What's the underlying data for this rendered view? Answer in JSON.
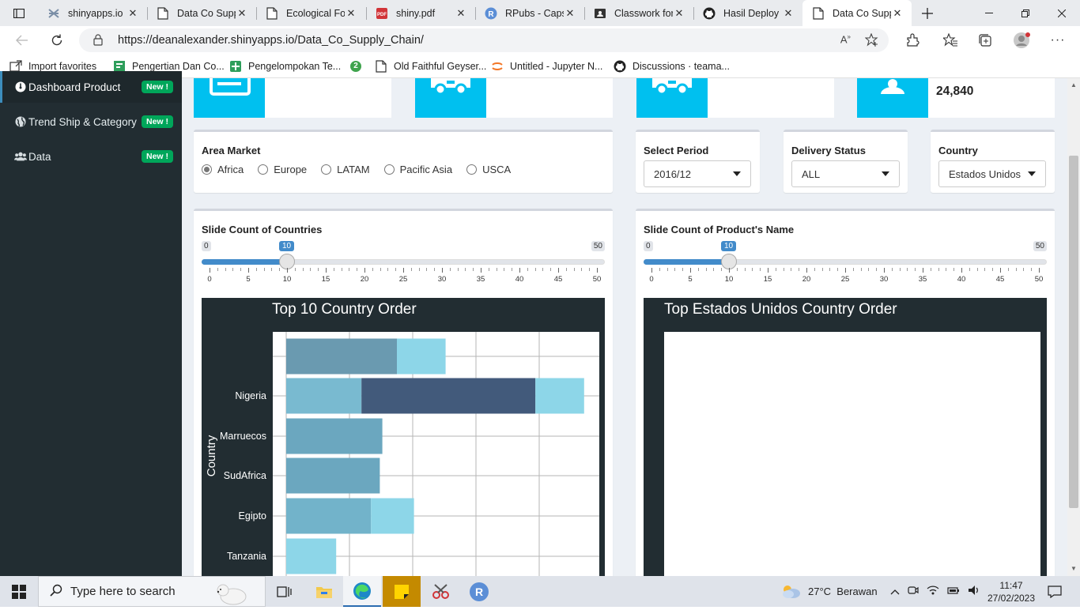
{
  "browser": {
    "tabs": [
      {
        "label": "shinyapps.io",
        "icon": "shinyapps-icon"
      },
      {
        "label": "Data Co Supp",
        "icon": "page-icon"
      },
      {
        "label": "Ecological Fo",
        "icon": "page-icon"
      },
      {
        "label": "shiny.pdf",
        "icon": "pdf-icon"
      },
      {
        "label": "RPubs - Caps",
        "icon": "rpubs-icon"
      },
      {
        "label": "Classwork for",
        "icon": "classroom-icon"
      },
      {
        "label": "Hasil Deploy",
        "icon": "github-icon"
      },
      {
        "label": "Data Co Supp",
        "icon": "page-icon"
      }
    ],
    "url": "https://deanalexander.shinyapps.io/Data_Co_Supply_Chain/",
    "bookmarks": [
      {
        "label": "Import favorites"
      },
      {
        "label": "Pengertian Dan Co..."
      },
      {
        "label": "Pengelompokan Te..."
      },
      {
        "label": "2"
      },
      {
        "label": "Old Faithful Geyser..."
      },
      {
        "label": "Untitled - Jupyter N..."
      },
      {
        "label": "Discussions · teama..."
      }
    ]
  },
  "sidebar": {
    "items": [
      {
        "label": "Dashboard Product",
        "badge": "New !",
        "icon": "dashboard-icon"
      },
      {
        "label": "Trend Ship & Category",
        "badge": "New !",
        "icon": "globe-icon"
      },
      {
        "label": "Data",
        "badge": "New !",
        "icon": "users-icon"
      }
    ]
  },
  "infoboxes": [
    {
      "value": "",
      "icon": "credit-card-icon"
    },
    {
      "value": "",
      "icon": "truck-icon"
    },
    {
      "value": "",
      "icon": "truck-icon"
    },
    {
      "value": "24,840",
      "icon": "user-icon"
    }
  ],
  "filters": {
    "area_market": {
      "label": "Area Market",
      "options": [
        "Africa",
        "Europe",
        "LATAM",
        "Pacific Asia",
        "USCA"
      ],
      "selected": "Africa"
    },
    "period": {
      "label": "Select Period",
      "value": "2016/12"
    },
    "delivery": {
      "label": "Delivery Status",
      "value": "ALL"
    },
    "country": {
      "label": "Country",
      "value": "Estados Unidos"
    }
  },
  "sliders": {
    "countries": {
      "label": "Slide Count of Countries",
      "min": "0",
      "max": "50",
      "value": "10",
      "value_num": 10,
      "max_num": 50,
      "ticks": [
        "0",
        "5",
        "10",
        "15",
        "20",
        "25",
        "30",
        "35",
        "40",
        "45",
        "50"
      ]
    },
    "products": {
      "label": "Slide Count of Product's Name",
      "min": "0",
      "max": "50",
      "value": "10",
      "value_num": 10,
      "max_num": 50,
      "ticks": [
        "0",
        "5",
        "10",
        "15",
        "20",
        "25",
        "30",
        "35",
        "40",
        "45",
        "50"
      ]
    }
  },
  "chart_data": [
    {
      "type": "bar",
      "orientation": "horizontal",
      "stacked": true,
      "title": "Top 10 Country Order",
      "ylabel": "Country",
      "categories": [
        "",
        "Nigeria",
        "Marruecos",
        "SudAfrica",
        "Egipto",
        "Tanzania"
      ],
      "segments": [
        [
          {
            "value": 1.75,
            "color": "#6a9ab0"
          },
          {
            "value": 0.77,
            "color": "#8dd6e8"
          }
        ],
        [
          {
            "value": 1.19,
            "color": "#79bad0"
          },
          {
            "value": 2.75,
            "color": "#425a7b"
          },
          {
            "value": 0.77,
            "color": "#8dd6e8"
          }
        ],
        [
          {
            "value": 1.52,
            "color": "#6ba7bf"
          }
        ],
        [
          {
            "value": 1.48,
            "color": "#6ba7bf"
          }
        ],
        [
          {
            "value": 1.34,
            "color": "#72b3ca"
          },
          {
            "value": 0.68,
            "color": "#8dd6e8"
          }
        ],
        [
          {
            "value": 0.79,
            "color": "#8dd6e8"
          }
        ]
      ],
      "xlim": [
        0,
        5
      ],
      "grid": true
    },
    {
      "type": "bar",
      "title": "Top Estados Unidos Country Order",
      "series": []
    }
  ],
  "taskbar": {
    "search_placeholder": "Type here to search",
    "weather": "27°C  Berawan",
    "time": "11:47",
    "date": "27/02/2023"
  }
}
